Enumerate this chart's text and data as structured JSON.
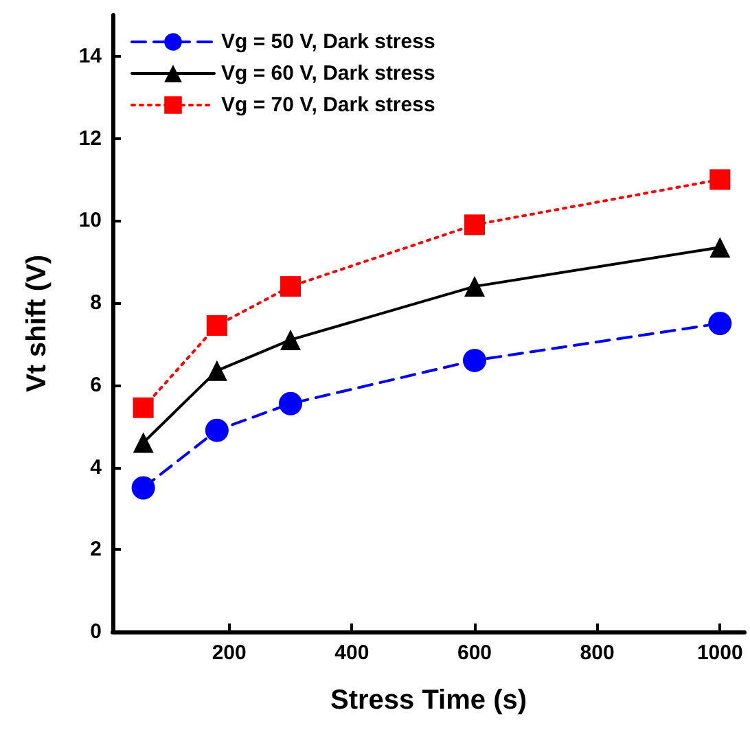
{
  "chart_data": {
    "type": "line",
    "xlabel": "Stress Time (s)",
    "ylabel": "Vt shift (V)",
    "x": [
      60,
      180,
      300,
      600,
      1000
    ],
    "series": [
      {
        "name": "Vg = 50 V, Dark stress",
        "color": "#0000ff",
        "marker": "circle",
        "line_style": "dashed",
        "values": [
          3.5,
          4.9,
          5.55,
          6.6,
          7.5
        ]
      },
      {
        "name": "Vg = 60 V, Dark stress",
        "color": "#000000",
        "marker": "triangle",
        "line_style": "solid",
        "values": [
          4.6,
          6.35,
          7.1,
          8.4,
          9.35
        ]
      },
      {
        "name": "Vg = 70 V, Dark stress",
        "color": "#ff0000",
        "marker": "square",
        "line_style": "dotted",
        "values": [
          5.45,
          7.45,
          8.4,
          9.9,
          11.0
        ]
      }
    ],
    "xlim": [
      10,
      1040
    ],
    "xticks": [
      200,
      400,
      600,
      800,
      1000
    ],
    "ylim": [
      0,
      15
    ],
    "yticks": [
      0,
      2,
      4,
      6,
      8,
      10,
      12,
      14
    ],
    "grid": false,
    "legend": "top left"
  }
}
